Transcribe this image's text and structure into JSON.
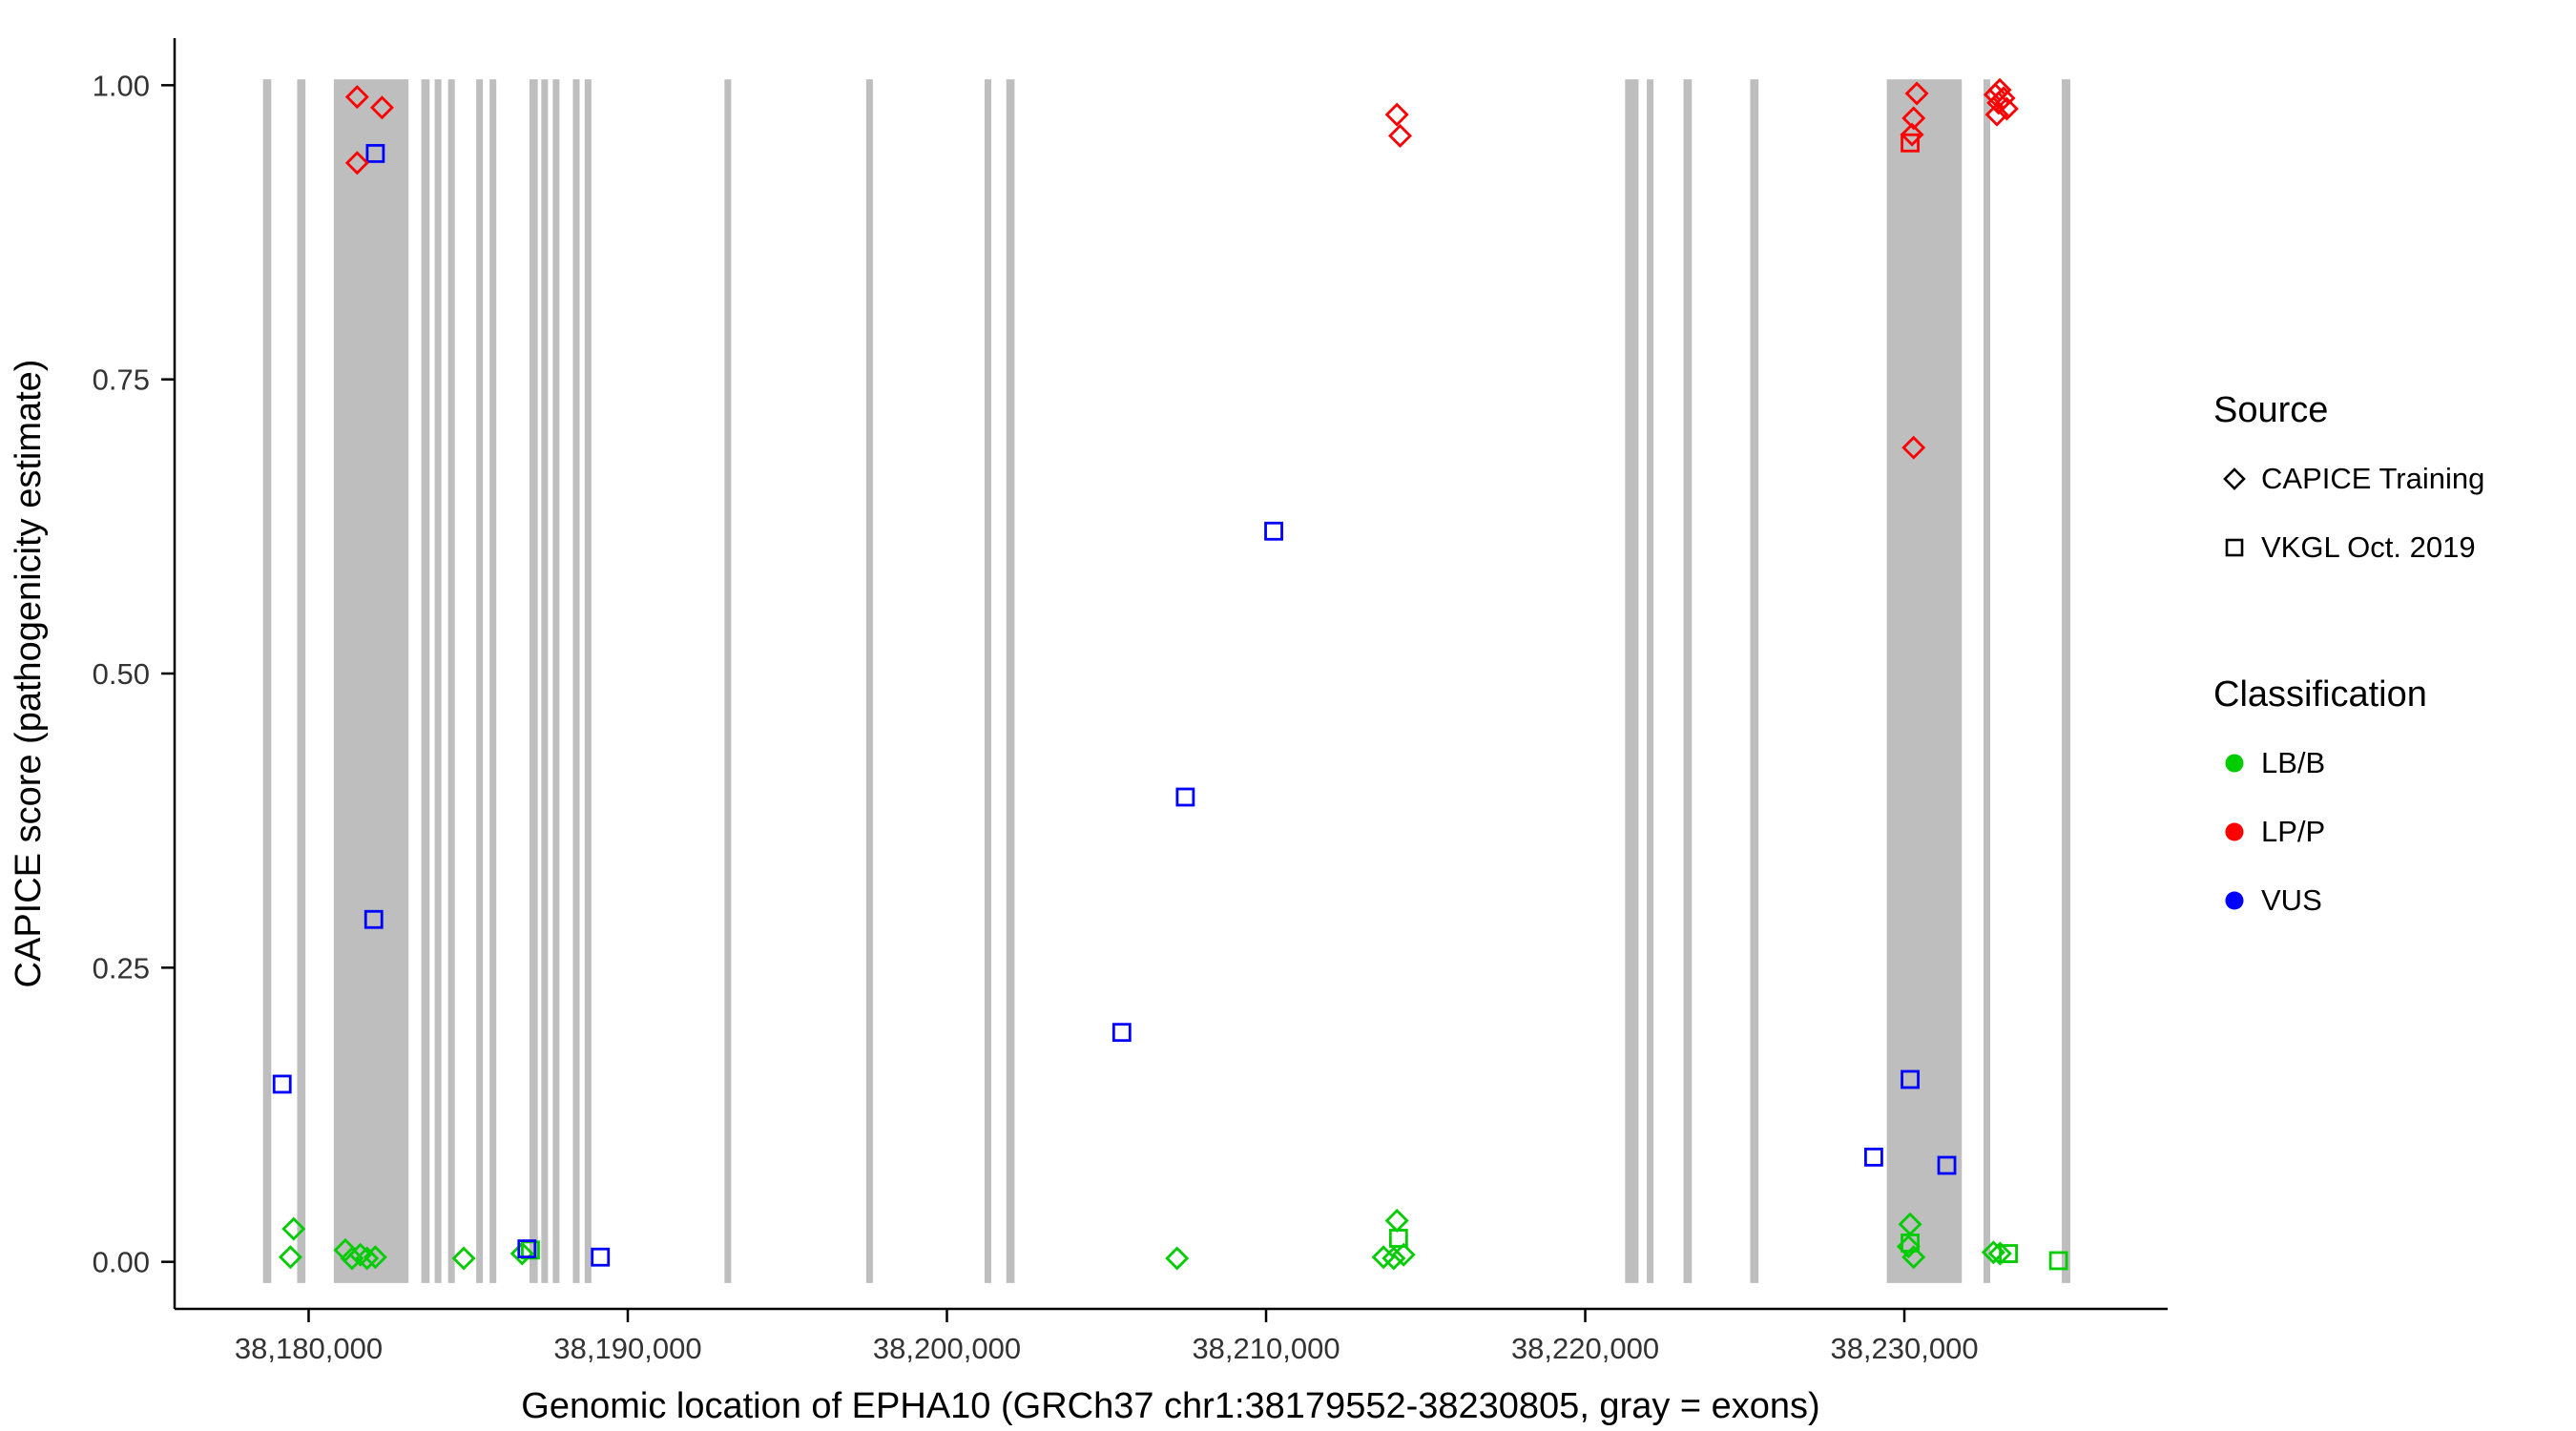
{
  "axes": {
    "x": {
      "title": "Genomic location of EPHA10 (GRCh37 chr1:38179552-38230805, gray = exons)",
      "min": 38175800,
      "max": 38238250,
      "ticks": [
        {
          "value": 38180000,
          "label": "38,180,000"
        },
        {
          "value": 38190000,
          "label": "38,190,000"
        },
        {
          "value": 38200000,
          "label": "38,200,000"
        },
        {
          "value": 38210000,
          "label": "38,210,000"
        },
        {
          "value": 38220000,
          "label": "38,220,000"
        },
        {
          "value": 38230000,
          "label": "38,230,000"
        }
      ]
    },
    "y": {
      "title": "CAPICE score (pathogenicity estimate)",
      "min": -0.04,
      "max": 1.04,
      "ticks": [
        {
          "value": 0.0,
          "label": "0.00"
        },
        {
          "value": 0.25,
          "label": "0.25"
        },
        {
          "value": 0.5,
          "label": "0.50"
        },
        {
          "value": 0.75,
          "label": "0.75"
        },
        {
          "value": 1.0,
          "label": "1.00"
        }
      ]
    }
  },
  "legend": {
    "source": {
      "title": "Source",
      "items": [
        {
          "label": "CAPICE Training",
          "marker": "diamond"
        },
        {
          "label": "VKGL Oct. 2019",
          "marker": "square"
        }
      ]
    },
    "classification": {
      "title": "Classification",
      "items": [
        {
          "label": "LB/B",
          "color_key": "lbb"
        },
        {
          "label": "LP/P",
          "color_key": "lpp"
        },
        {
          "label": "VUS",
          "color_key": "vus"
        }
      ]
    }
  },
  "colors": {
    "lbb": "#00CC00",
    "lpp": "#FF0000",
    "vus": "#0000FF",
    "exon": "#BEBEBE",
    "axis": "#000000",
    "tick_label": "#333333"
  },
  "chart_data": {
    "type": "scatter",
    "title": "",
    "xlabel": "Genomic location of EPHA10 (GRCh37 chr1:38179552-38230805, gray = exons)",
    "ylabel": "CAPICE score (pathogenicity estimate)",
    "xlim": [
      38175800,
      38238250
    ],
    "ylim": [
      -0.04,
      1.04
    ],
    "exon_y": [
      -0.018,
      1.005
    ],
    "exons": [
      [
        38178570,
        38178830
      ],
      [
        38179640,
        38179900
      ],
      [
        38180790,
        38183130
      ],
      [
        38183530,
        38183790
      ],
      [
        38183950,
        38184160
      ],
      [
        38184370,
        38184580
      ],
      [
        38185250,
        38185460
      ],
      [
        38185670,
        38185880
      ],
      [
        38186920,
        38187180
      ],
      [
        38187290,
        38187500
      ],
      [
        38187650,
        38187860
      ],
      [
        38188280,
        38188490
      ],
      [
        38188650,
        38188860
      ],
      [
        38193030,
        38193240
      ],
      [
        38197470,
        38197680
      ],
      [
        38201180,
        38201390
      ],
      [
        38201860,
        38202120
      ],
      [
        38221250,
        38221670
      ],
      [
        38221930,
        38222140
      ],
      [
        38223080,
        38223340
      ],
      [
        38225170,
        38225430
      ],
      [
        38229450,
        38231800
      ],
      [
        38232480,
        38232690
      ],
      [
        38234930,
        38235200
      ]
    ],
    "series": [
      {
        "name": "CAPICE Training / LB/B",
        "source": "CAPICE Training",
        "classification": "LB/B",
        "marker": "diamond",
        "color_key": "lbb",
        "points": [
          [
            38179530,
            0.028
          ],
          [
            38179430,
            0.004
          ],
          [
            38181150,
            0.01
          ],
          [
            38181360,
            0.003
          ],
          [
            38181620,
            0.006
          ],
          [
            38181830,
            0.003
          ],
          [
            38182090,
            0.004
          ],
          [
            38184860,
            0.003
          ],
          [
            38186690,
            0.007
          ],
          [
            38207210,
            0.003
          ],
          [
            38213680,
            0.004
          ],
          [
            38214000,
            0.003
          ],
          [
            38214310,
            0.006
          ],
          [
            38214100,
            0.035
          ],
          [
            38230180,
            0.032
          ],
          [
            38230130,
            0.013
          ],
          [
            38230290,
            0.004
          ],
          [
            38232790,
            0.008
          ],
          [
            38233000,
            0.007
          ]
        ]
      },
      {
        "name": "VKGL Oct. 2019 / LB/B",
        "source": "VKGL Oct. 2019",
        "classification": "LB/B",
        "marker": "square",
        "color_key": "lbb",
        "points": [
          [
            38186950,
            0.01
          ],
          [
            38214150,
            0.02
          ],
          [
            38230180,
            0.016
          ],
          [
            38233260,
            0.007
          ],
          [
            38234830,
            0.001
          ]
        ]
      },
      {
        "name": "VKGL Oct. 2019 / VUS",
        "source": "VKGL Oct. 2019",
        "classification": "VUS",
        "marker": "square",
        "color_key": "vus",
        "points": [
          [
            38182090,
            0.942
          ],
          [
            38182040,
            0.291
          ],
          [
            38179170,
            0.151
          ],
          [
            38210240,
            0.621
          ],
          [
            38207470,
            0.395
          ],
          [
            38205480,
            0.195
          ],
          [
            38186840,
            0.011
          ],
          [
            38189140,
            0.004
          ],
          [
            38229040,
            0.089
          ],
          [
            38230180,
            0.155
          ],
          [
            38231330,
            0.082
          ]
        ]
      },
      {
        "name": "VKGL Oct. 2019 / LP/P",
        "source": "VKGL Oct. 2019",
        "classification": "LP/P",
        "marker": "square",
        "color_key": "lpp",
        "points": [
          [
            38230180,
            0.951
          ]
        ]
      },
      {
        "name": "CAPICE Training / LP/P",
        "source": "CAPICE Training",
        "classification": "LP/P",
        "marker": "diamond",
        "color_key": "lpp",
        "points": [
          [
            38181520,
            0.99
          ],
          [
            38182300,
            0.981
          ],
          [
            38181520,
            0.934
          ],
          [
            38214100,
            0.975
          ],
          [
            38214200,
            0.957
          ],
          [
            38230390,
            0.993
          ],
          [
            38230290,
            0.972
          ],
          [
            38230240,
            0.958
          ],
          [
            38230290,
            0.692
          ],
          [
            38232990,
            0.996
          ],
          [
            38232850,
            0.992
          ],
          [
            38233110,
            0.989
          ],
          [
            38232950,
            0.985
          ],
          [
            38233210,
            0.98
          ],
          [
            38232900,
            0.975
          ]
        ]
      }
    ]
  }
}
